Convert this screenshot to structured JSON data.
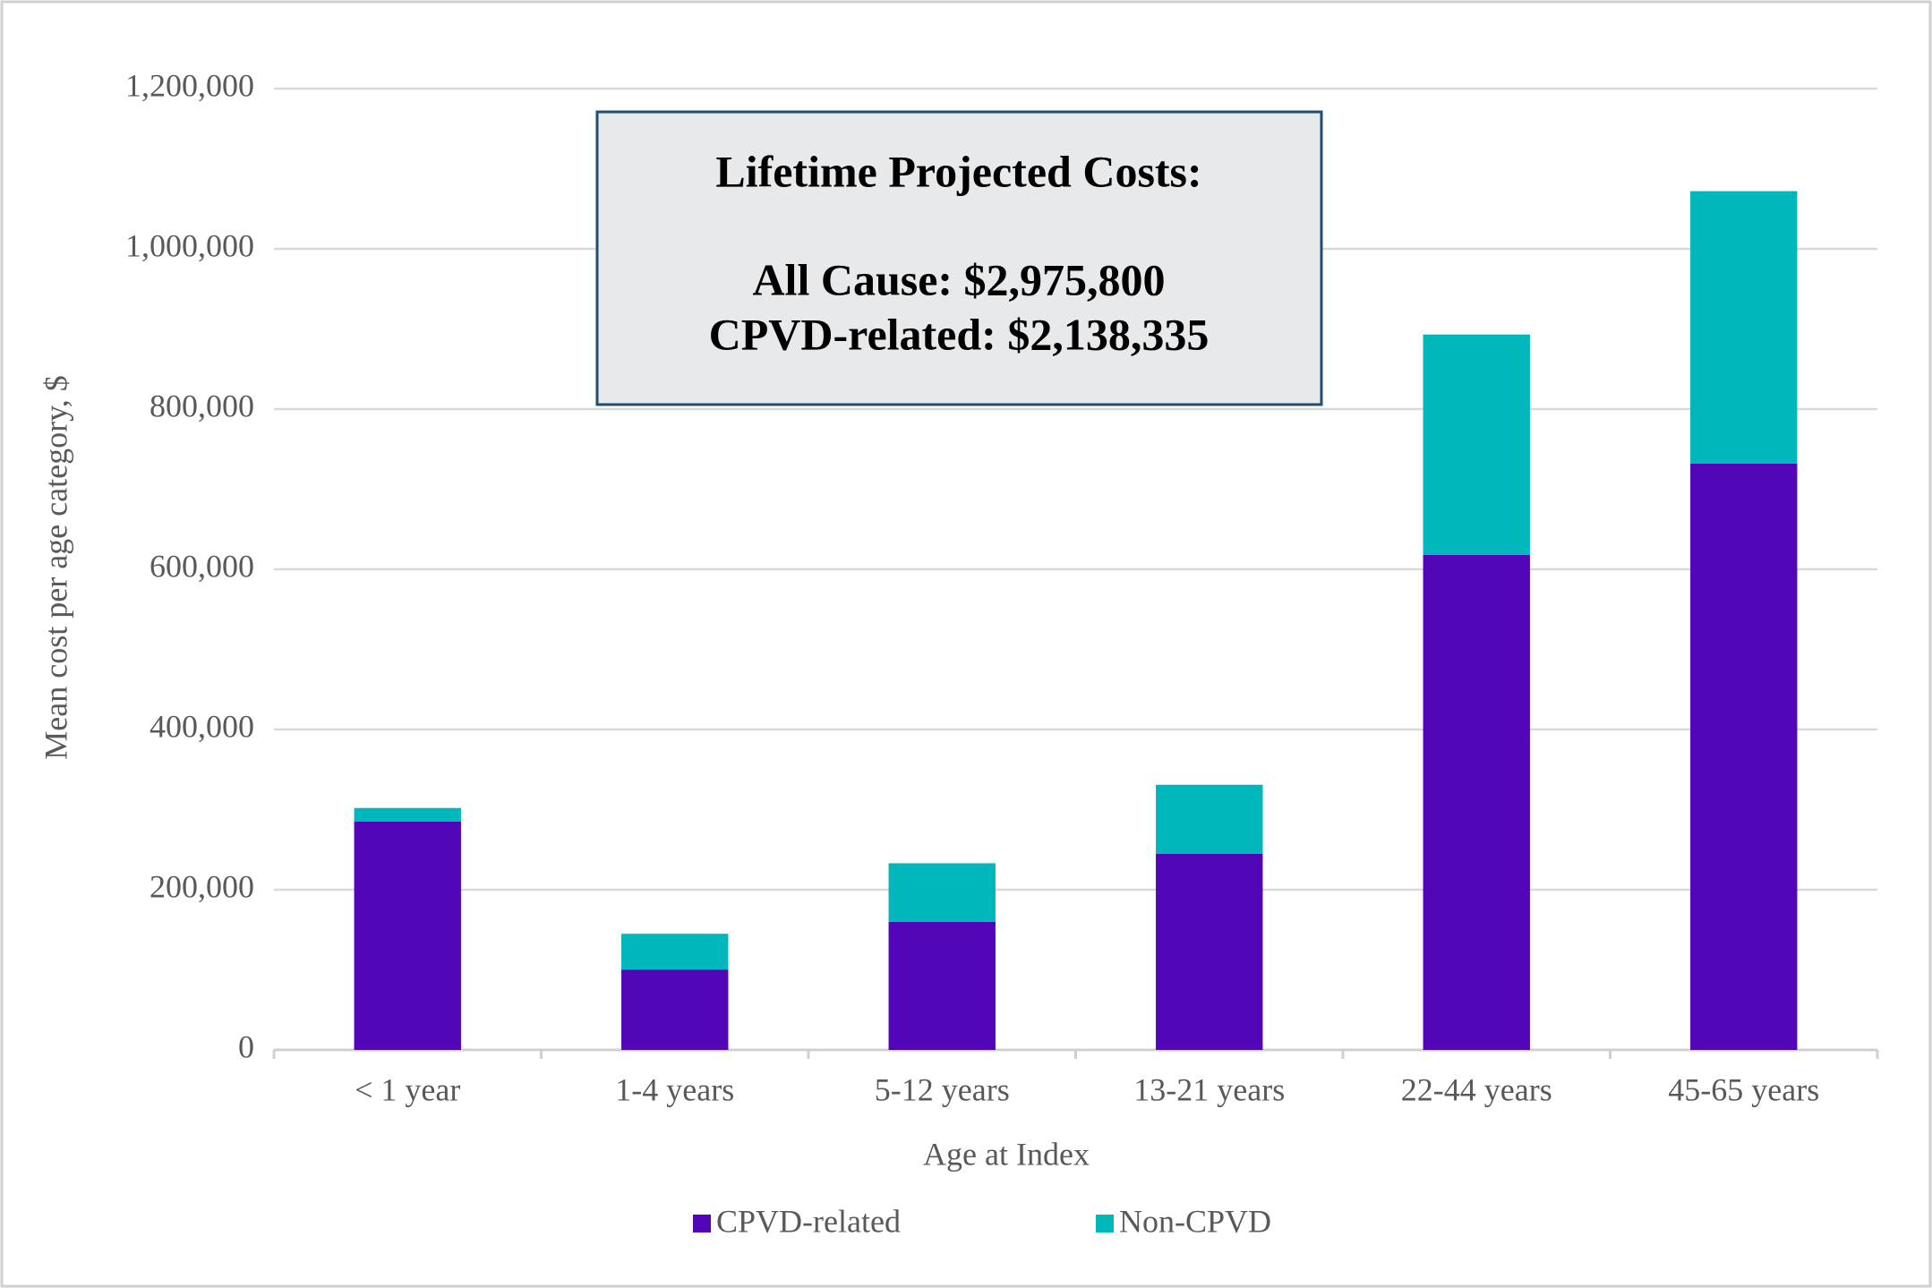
{
  "chart_data": {
    "type": "stacked_bar",
    "x_label": "Age at Index",
    "y_label": "Mean cost per age category, $",
    "categories": [
      "< 1 year",
      "1-4 years",
      "5-12 years",
      "13-21 years",
      "22-44 years",
      "45-65 years"
    ],
    "series": [
      {
        "name": "CPVD-related",
        "color": "#5206b8",
        "values": [
          285000,
          100000,
          160000,
          245000,
          618000,
          732000
        ]
      },
      {
        "name": "Non-CPVD",
        "color": "#00b8bc",
        "values": [
          17000,
          45000,
          73000,
          86000,
          275000,
          340000
        ]
      }
    ],
    "ylim": [
      0,
      1200000
    ],
    "yticks": [
      0,
      {
        "value": 200000,
        "label": "200,000"
      },
      {
        "value": 400000,
        "label": "400,000"
      },
      {
        "value": 600000,
        "label": "600,000"
      },
      {
        "value": 800000,
        "label": "800,000"
      },
      {
        "value": 1000000,
        "label": "1,000,000"
      },
      {
        "value": 1200000,
        "label": "1,200,000"
      }
    ],
    "grid": true,
    "legend": "bottom",
    "annotation": [
      "Lifetime Projected Costs:",
      "All Cause: $2,975,800",
      "CPVD-related: $2,138,335"
    ]
  }
}
